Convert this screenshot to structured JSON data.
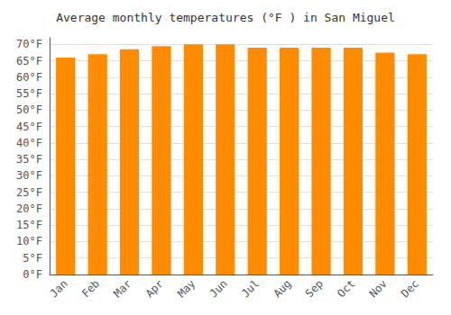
{
  "chart_data": {
    "type": "bar",
    "title": "Average monthly temperatures (°F ) in San Miguel",
    "categories": [
      "Jan",
      "Feb",
      "Mar",
      "Apr",
      "May",
      "Jun",
      "Jul",
      "Aug",
      "Sep",
      "Oct",
      "Nov",
      "Dec"
    ],
    "values": [
      66,
      67,
      68.5,
      69.5,
      70,
      70,
      69,
      69,
      69,
      69,
      67.5,
      67
    ],
    "color": "#ff8c00",
    "ylim": [
      0,
      72
    ],
    "yticks": [
      {
        "value": 0,
        "label": "0°F"
      },
      {
        "value": 5,
        "label": "5°F"
      },
      {
        "value": 10,
        "label": "10°F"
      },
      {
        "value": 15,
        "label": "15°F"
      },
      {
        "value": 20,
        "label": "20°F"
      },
      {
        "value": 25,
        "label": "25°F"
      },
      {
        "value": 30,
        "label": "30°F"
      },
      {
        "value": 35,
        "label": "35°F"
      },
      {
        "value": 40,
        "label": "40°F"
      },
      {
        "value": 45,
        "label": "45°F"
      },
      {
        "value": 50,
        "label": "50°F"
      },
      {
        "value": 55,
        "label": "55°F"
      },
      {
        "value": 60,
        "label": "60°F"
      },
      {
        "value": 65,
        "label": "65°F"
      },
      {
        "value": 70,
        "label": "70°F"
      }
    ],
    "grid": true
  }
}
